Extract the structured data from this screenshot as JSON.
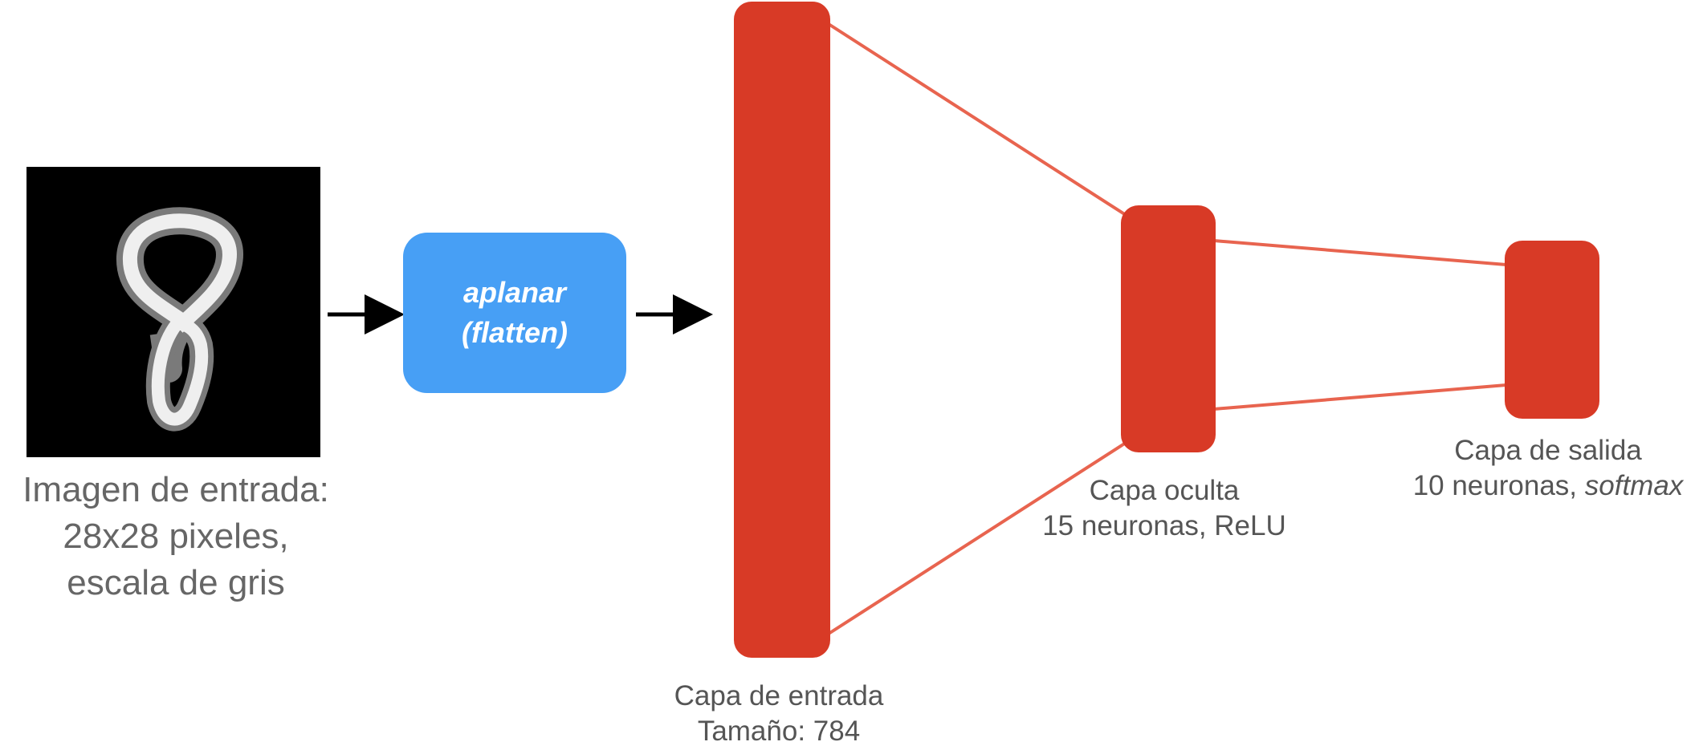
{
  "colors": {
    "layer": "#d83a26",
    "connector": "#e8644f",
    "flatten_box": "#479ff5",
    "arrow": "#000000",
    "label": "#555555"
  },
  "input_image": {
    "description_icon": "handwritten-digit-8-grayscale",
    "label_lines": [
      "Imagen de entrada:",
      "28x28 pixeles,",
      "escala de gris"
    ]
  },
  "flatten": {
    "line1": "aplanar",
    "line2": "(flatten)"
  },
  "layers": {
    "input": {
      "name": "Capa de entrada",
      "detail": "Tamaño: 784"
    },
    "hidden": {
      "name": "Capa oculta",
      "detail": "15 neuronas, ReLU"
    },
    "output": {
      "name": "Capa de salida",
      "detail_prefix": "10 neuronas, ",
      "detail_italic": "softmax"
    }
  }
}
